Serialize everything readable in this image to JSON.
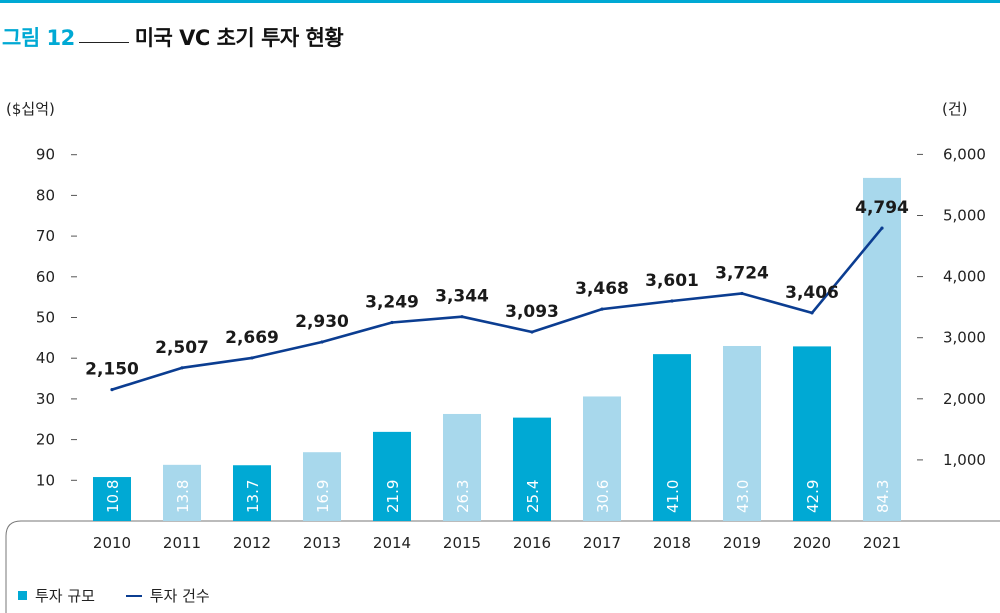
{
  "figure": {
    "label": "그림 12",
    "title": "미국 VC 초기 투자 현황"
  },
  "colors": {
    "accent": "#00a9d4",
    "bar_dark": "#00a9d4",
    "bar_light": "#a8d8ec",
    "line": "#0b3d91"
  },
  "chart_data": {
    "type": "bar",
    "categories": [
      "2010",
      "2011",
      "2012",
      "2013",
      "2014",
      "2015",
      "2016",
      "2017",
      "2018",
      "2019",
      "2020",
      "2021"
    ],
    "series": [
      {
        "name": "투자 규모",
        "type": "bar",
        "axis": "left",
        "values": [
          10.8,
          13.8,
          13.7,
          16.9,
          21.9,
          26.3,
          25.4,
          30.6,
          41.0,
          43.0,
          42.9,
          84.3
        ],
        "labels": [
          "10.8",
          "13.8",
          "13.7",
          "16.9",
          "21.9",
          "26.3",
          "25.4",
          "30.6",
          "41.0",
          "43.0",
          "42.9",
          "84.3"
        ],
        "shade": [
          "dark",
          "light",
          "dark",
          "light",
          "dark",
          "light",
          "dark",
          "light",
          "dark",
          "light",
          "dark",
          "light"
        ]
      },
      {
        "name": "투자 건수",
        "type": "line",
        "axis": "right",
        "values": [
          2150,
          2507,
          2669,
          2930,
          3249,
          3344,
          3093,
          3468,
          3601,
          3724,
          3406,
          4794
        ],
        "labels": [
          "2,150",
          "2,507",
          "2,669",
          "2,930",
          "3,249",
          "3,344",
          "3,093",
          "3,468",
          "3,601",
          "3,724",
          "3,406",
          "4,794"
        ]
      }
    ],
    "y_left": {
      "unit": "($십억)",
      "range": [
        0,
        95
      ],
      "ticks": [
        10,
        20,
        30,
        40,
        50,
        60,
        70,
        80,
        90
      ],
      "tick_labels": [
        "10",
        "20",
        "30",
        "40",
        "50",
        "60",
        "70",
        "80",
        "90"
      ]
    },
    "y_right": {
      "unit": "(건)",
      "range": [
        0,
        6333
      ],
      "ticks": [
        1000,
        2000,
        3000,
        4000,
        5000,
        6000
      ],
      "tick_labels": [
        "1,000",
        "2,000",
        "3,000",
        "4,000",
        "5,000",
        "6,000"
      ]
    },
    "grid": false,
    "legend": {
      "position": "bottom-left",
      "items": [
        "투자 규모",
        "투자 건수"
      ]
    }
  }
}
